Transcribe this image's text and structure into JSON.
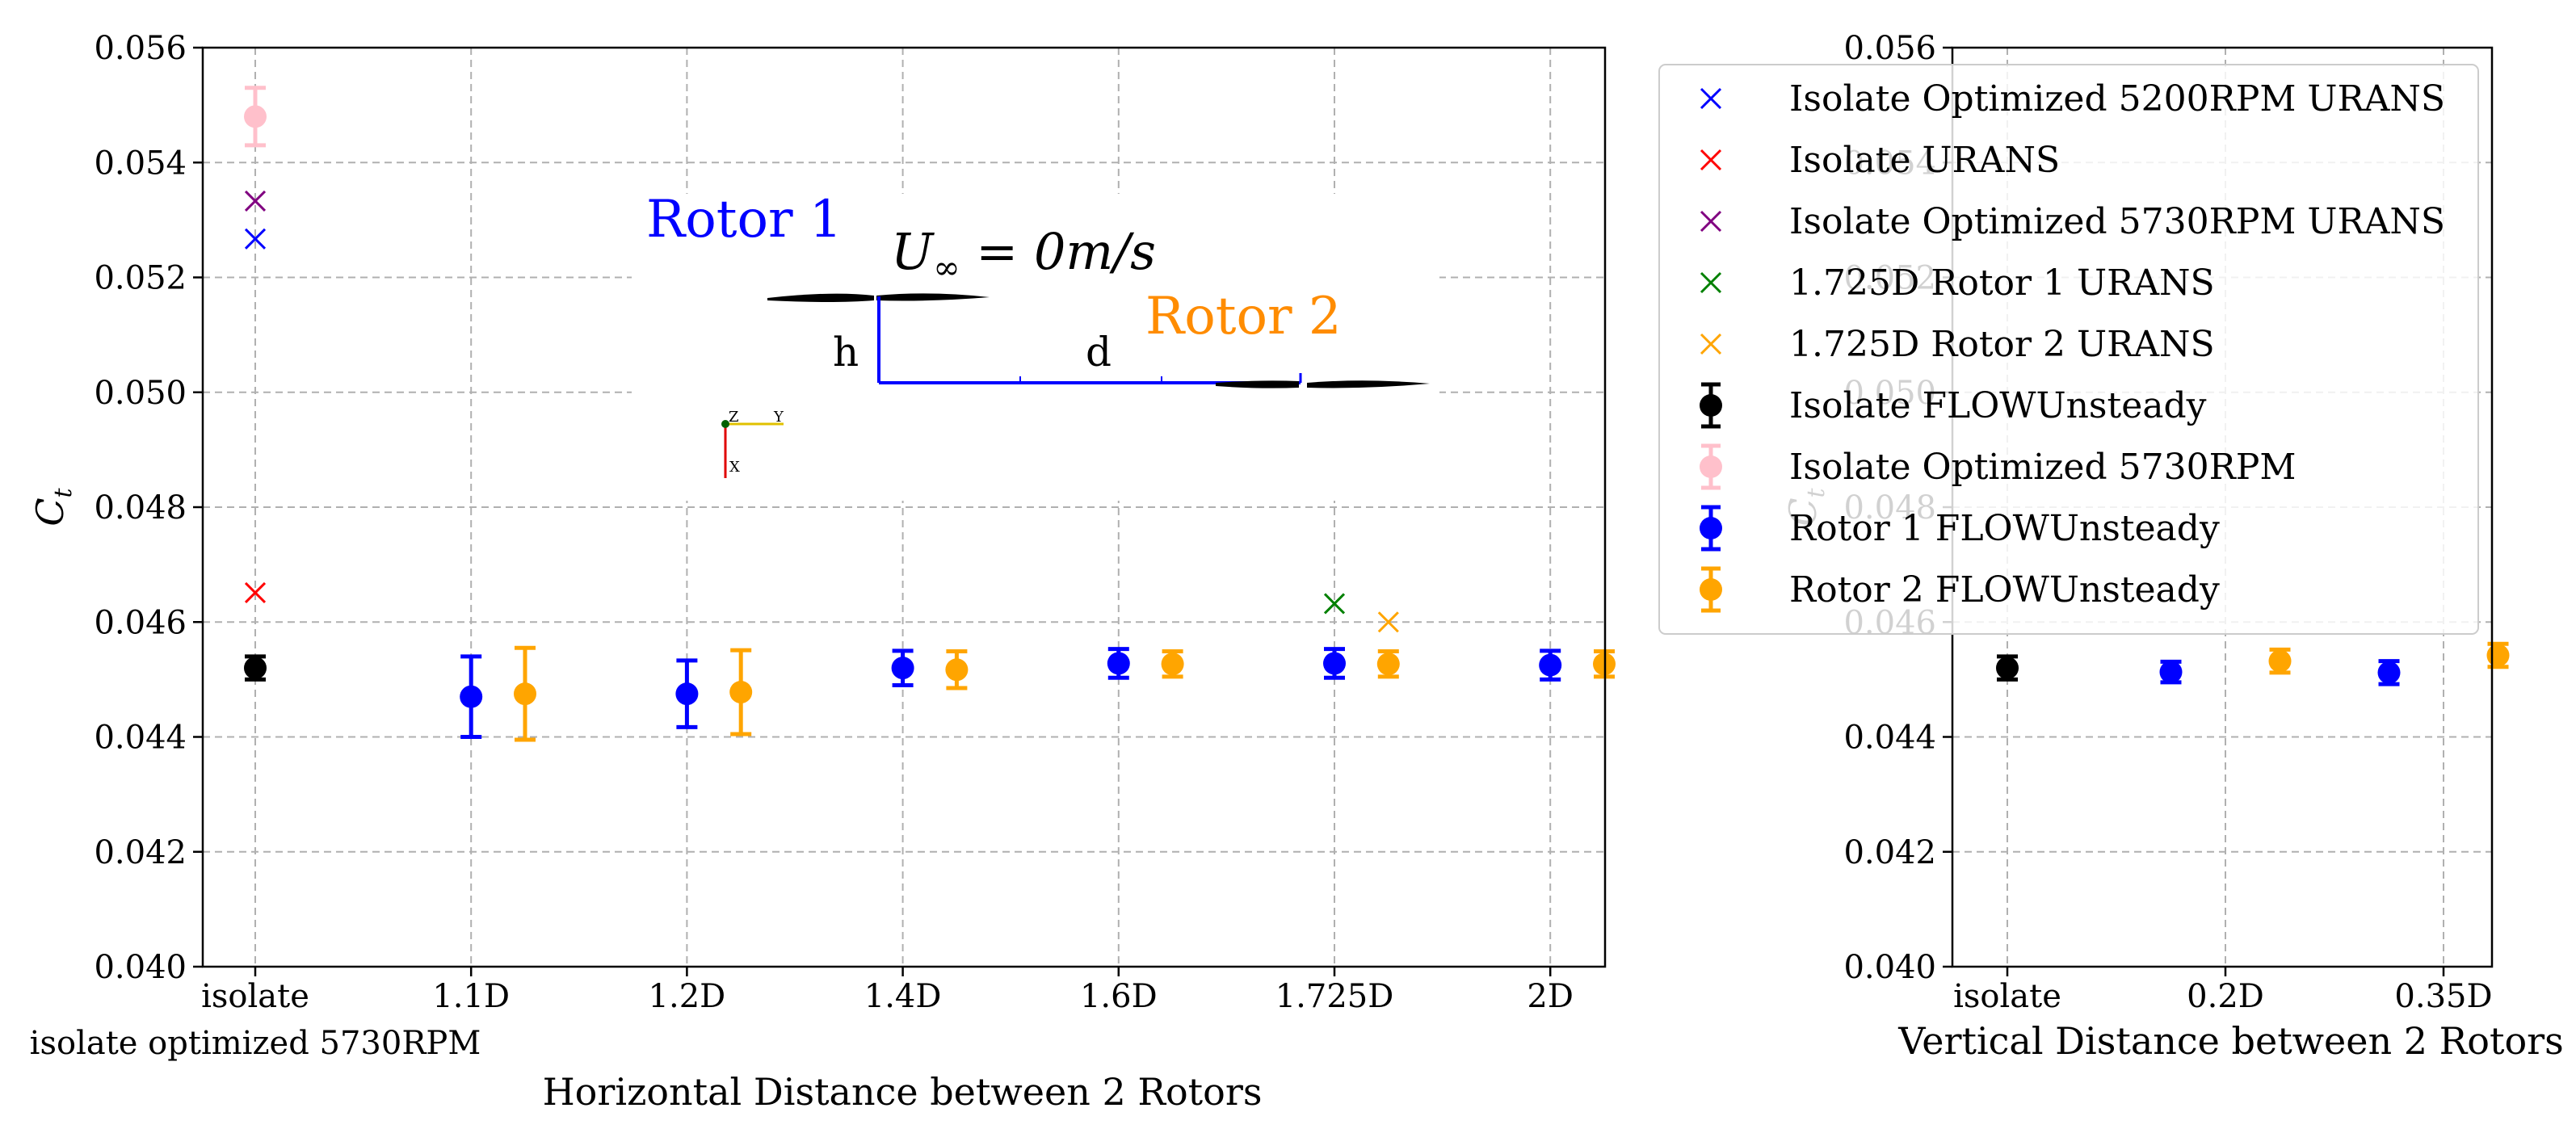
{
  "chart_data": [
    {
      "type": "scatter",
      "id": "left",
      "xlabel": "Horizontal Distance between 2 Rotors",
      "ylabel": "C",
      "ylabel_sub": "t",
      "ylim": [
        0.04,
        0.056
      ],
      "yticks": [
        0.04,
        0.042,
        0.044,
        0.046,
        0.048,
        0.05,
        0.052,
        0.054,
        0.056
      ],
      "ytick_labels": [
        "0.040",
        "0.042",
        "0.044",
        "0.046",
        "0.048",
        "0.050",
        "0.052",
        "0.054",
        "0.056"
      ],
      "categories": [
        "isolate",
        "1.1D",
        "1.2D",
        "1.4D",
        "1.6D",
        "1.725D",
        "2D"
      ],
      "category_sublabel": "isolate optimized 5730RPM",
      "grid": true,
      "errorbar_series": [
        {
          "name": "Isolate FLOWUnsteady",
          "color": "#000000",
          "points": [
            {
              "x": 0,
              "y": 0.0452,
              "err": 0.0002
            }
          ]
        },
        {
          "name": "Isolate Optimized 5730RPM",
          "color": "#ffc0cb",
          "points": [
            {
              "x": 0,
              "y": 0.0548,
              "err": 0.0005
            }
          ]
        },
        {
          "name": "Rotor 1 FLOWUnsteady",
          "color": "#0000ff",
          "points": [
            {
              "x": 1,
              "y": 0.0447,
              "err": 0.0007
            },
            {
              "x": 2,
              "y": 0.04475,
              "err": 0.00058
            },
            {
              "x": 3,
              "y": 0.0452,
              "err": 0.0003
            },
            {
              "x": 4,
              "y": 0.04528,
              "err": 0.00025
            },
            {
              "x": 5,
              "y": 0.04528,
              "err": 0.00025
            },
            {
              "x": 6,
              "y": 0.04525,
              "err": 0.00025
            }
          ]
        },
        {
          "name": "Rotor 2 FLOWUnsteady",
          "color": "#ffa500",
          "points": [
            {
              "x": 1.25,
              "y": 0.04475,
              "err": 0.0008
            },
            {
              "x": 2.25,
              "y": 0.04478,
              "err": 0.00073
            },
            {
              "x": 3.25,
              "y": 0.04517,
              "err": 0.00032
            },
            {
              "x": 4.25,
              "y": 0.04527,
              "err": 0.00022
            },
            {
              "x": 5.25,
              "y": 0.04527,
              "err": 0.00022
            },
            {
              "x": 6.25,
              "y": 0.04527,
              "err": 0.00022
            }
          ]
        }
      ],
      "cross_series": [
        {
          "name": "Isolate Optimized 5200RPM URANS",
          "color": "#0000ff",
          "points": [
            {
              "x": 0,
              "y": 0.05267
            }
          ]
        },
        {
          "name": "Isolate URANS",
          "color": "#ff0000",
          "points": [
            {
              "x": 0,
              "y": 0.04651
            }
          ]
        },
        {
          "name": "Isolate Optimized 5730RPM URANS",
          "color": "#800080",
          "points": [
            {
              "x": 0,
              "y": 0.05333
            }
          ]
        },
        {
          "name": "1.725D Rotor 1 URANS",
          "color": "#008000",
          "points": [
            {
              "x": 5,
              "y": 0.04632
            }
          ]
        },
        {
          "name": "1.725D Rotor 2 URANS",
          "color": "#ffa500",
          "points": [
            {
              "x": 5.25,
              "y": 0.046
            }
          ]
        }
      ]
    },
    {
      "type": "scatter",
      "id": "right",
      "xlabel": "Vertical Distance between 2 Rotors",
      "ylabel": "C",
      "ylabel_sub": "t",
      "ylim": [
        0.04,
        0.056
      ],
      "yticks": [
        0.04,
        0.042,
        0.044,
        0.046,
        0.048,
        0.05,
        0.052,
        0.054,
        0.056
      ],
      "ytick_labels": [
        "0.040",
        "0.042",
        "0.044",
        "0.046",
        "0.048",
        "0.050",
        "0.052",
        "0.054",
        "0.056"
      ],
      "categories": [
        "isolate",
        "0.2D",
        "0.35D"
      ],
      "grid": true,
      "errorbar_series": [
        {
          "name": "Isolate FLOWUnsteady",
          "color": "#000000",
          "points": [
            {
              "x": 0,
              "y": 0.0452,
              "err": 0.0002
            }
          ]
        },
        {
          "name": "Rotor 1 FLOWUnsteady",
          "color": "#0000ff",
          "points": [
            {
              "x": 0.75,
              "y": 0.04513,
              "err": 0.00018
            },
            {
              "x": 1.75,
              "y": 0.04512,
              "err": 0.0002
            }
          ]
        },
        {
          "name": "Rotor 2 FLOWUnsteady",
          "color": "#ffa500",
          "points": [
            {
              "x": 1.25,
              "y": 0.04532,
              "err": 0.0002
            },
            {
              "x": 2.25,
              "y": 0.04542,
              "err": 0.0002
            }
          ]
        }
      ],
      "cross_series": []
    }
  ],
  "legend": {
    "placement": "upper-right of left panel",
    "entries": [
      {
        "label": "Isolate Optimized 5200RPM URANS",
        "kind": "cross",
        "color": "#0000ff"
      },
      {
        "label": "Isolate URANS",
        "kind": "cross",
        "color": "#ff0000"
      },
      {
        "label": "Isolate Optimized 5730RPM URANS",
        "kind": "cross",
        "color": "#800080"
      },
      {
        "label": "1.725D Rotor 1 URANS",
        "kind": "cross",
        "color": "#008000"
      },
      {
        "label": "1.725D Rotor 2 URANS",
        "kind": "cross",
        "color": "#ffa500"
      },
      {
        "label": "Isolate FLOWUnsteady",
        "kind": "errorbar",
        "color": "#000000"
      },
      {
        "label": "Isolate Optimized 5730RPM",
        "kind": "errorbar",
        "color": "#ffc0cb"
      },
      {
        "label": "Rotor 1 FLOWUnsteady",
        "kind": "errorbar",
        "color": "#0000ff"
      },
      {
        "label": "Rotor 2 FLOWUnsteady",
        "kind": "errorbar",
        "color": "#ffa500"
      }
    ]
  },
  "inset": {
    "rotor1_label": "Rotor 1",
    "rotor2_label": "Rotor 2",
    "velocity_label": "U",
    "velocity_sub": "∞",
    "velocity_value": " = 0m/s",
    "h_label": "h",
    "d_label": "d",
    "axis_z": "Z",
    "axis_y": "Y",
    "axis_x": "X",
    "rotor1_color": "#0000ff",
    "rotor2_color": "#ff8c00"
  }
}
